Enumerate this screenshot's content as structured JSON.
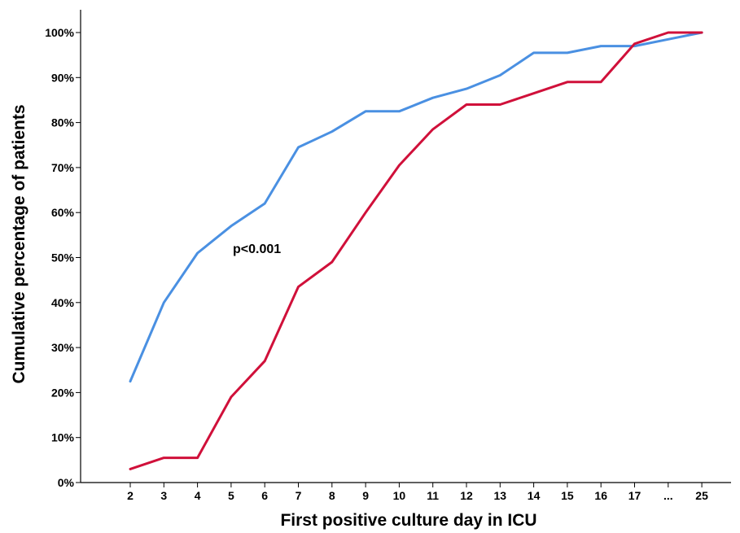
{
  "chart_data": {
    "type": "line",
    "title": "",
    "xlabel": "First positive culture day in ICU",
    "ylabel": "Cumulative percentage of patients",
    "categories": [
      "2",
      "3",
      "4",
      "5",
      "6",
      "7",
      "8",
      "9",
      "10",
      "11",
      "12",
      "13",
      "14",
      "15",
      "16",
      "17",
      "...",
      "25"
    ],
    "y_ticks": [
      "0%",
      "10%",
      "20%",
      "30%",
      "40%",
      "50%",
      "60%",
      "70%",
      "80%",
      "90%",
      "100%"
    ],
    "ylim": [
      0,
      100
    ],
    "grid": false,
    "annotation": "p<0.001",
    "series": [
      {
        "color": "#4A90E2",
        "values": [
          22.5,
          40,
          51,
          57,
          62,
          74.5,
          78,
          82.5,
          82.5,
          85.5,
          87.5,
          90.5,
          95.5,
          95.5,
          97,
          97,
          98.5,
          100
        ]
      },
      {
        "color": "#D0103A",
        "values": [
          3,
          5.5,
          5.5,
          19,
          27,
          43.5,
          49,
          60,
          70.5,
          78.5,
          84,
          84,
          86.5,
          89,
          89,
          97.5,
          100,
          100
        ]
      }
    ]
  }
}
